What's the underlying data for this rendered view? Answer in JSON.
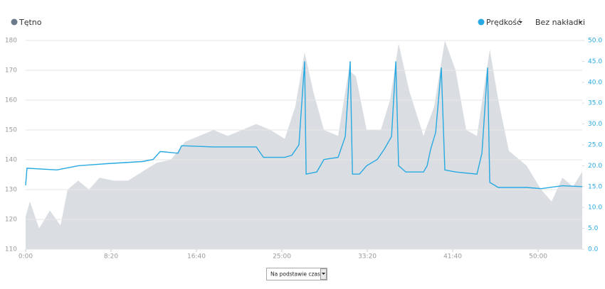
{
  "chart_data": {
    "type": "line",
    "xlim": [
      0,
      3258
    ],
    "xticks": [
      {
        "value": 0,
        "label": "0:00"
      },
      {
        "value": 500,
        "label": "8:20"
      },
      {
        "value": 1000,
        "label": "16:40"
      },
      {
        "value": 1500,
        "label": "25:00"
      },
      {
        "value": 2000,
        "label": "33:20"
      },
      {
        "value": 2500,
        "label": "41:40"
      },
      {
        "value": 3000,
        "label": "50:00"
      }
    ],
    "ylim": [
      110,
      180
    ],
    "yticks": [
      110,
      120,
      130,
      140,
      150,
      160,
      170,
      180
    ],
    "y2lim": [
      0,
      50
    ],
    "y2ticks": [
      {
        "value": 0,
        "label": "0.0"
      },
      {
        "value": 5,
        "label": "5.0"
      },
      {
        "value": 10,
        "label": "10.0"
      },
      {
        "value": 15,
        "label": "15.0"
      },
      {
        "value": 20,
        "label": "20.0"
      },
      {
        "value": 25,
        "label": "25.0"
      },
      {
        "value": 30,
        "label": "30.0"
      },
      {
        "value": 35,
        "label": "35.0"
      },
      {
        "value": 40,
        "label": "40.0"
      },
      {
        "value": 45,
        "label": "45.0"
      },
      {
        "value": 50,
        "label": "50.0"
      }
    ],
    "grid": true,
    "series": [
      {
        "name": "Tętno",
        "color": "#dadee2",
        "legend_color": "#6a7a8a",
        "fill": true,
        "x": [
          0,
          25,
          79,
          142,
          204,
          246,
          308,
          371,
          433,
          517,
          600,
          683,
          767,
          850,
          933,
          1017,
          1100,
          1183,
          1267,
          1350,
          1433,
          1517,
          1579,
          1633,
          1683,
          1746,
          1829,
          1892,
          1933,
          1996,
          2079,
          2133,
          2183,
          2246,
          2329,
          2392,
          2454,
          2517,
          2579,
          2642,
          2717,
          2767,
          2829,
          2933,
          3017,
          3079,
          3142,
          3204,
          3258
        ],
        "values": [
          121,
          126,
          117,
          123,
          118,
          130,
          133,
          130,
          134,
          133,
          133,
          136,
          139,
          140,
          146,
          148,
          150,
          148,
          150,
          152,
          150,
          147,
          158,
          176,
          163,
          150,
          148,
          170,
          168,
          150,
          150,
          160,
          179,
          163,
          148,
          158,
          180,
          170,
          150,
          148,
          177,
          160,
          143,
          138,
          130,
          126,
          134,
          131,
          136
        ]
      },
      {
        "name": "Prędkość",
        "color": "#27a9e1",
        "axis": "y2",
        "x": [
          0,
          8,
          183,
          308,
          475,
          683,
          746,
          788,
          892,
          913,
          1100,
          1350,
          1392,
          1517,
          1558,
          1600,
          1633,
          1642,
          1704,
          1746,
          1829,
          1871,
          1900,
          1913,
          1954,
          1996,
          2058,
          2100,
          2142,
          2167,
          2183,
          2225,
          2329,
          2350,
          2371,
          2400,
          2433,
          2454,
          2517,
          2642,
          2671,
          2704,
          2717,
          2767,
          2933,
          3017,
          3142,
          3258
        ],
        "values": [
          15.3,
          19.4,
          19,
          20,
          20.5,
          21,
          21.5,
          23.4,
          23,
          24.8,
          24.5,
          24.5,
          22,
          22,
          22.5,
          25,
          45,
          18,
          18.5,
          21.5,
          22,
          27,
          45,
          18,
          18,
          20,
          21.5,
          24,
          27,
          45,
          20,
          18.5,
          18.5,
          20,
          24,
          28,
          43.5,
          19,
          18.5,
          18,
          23,
          43.5,
          16,
          14.8,
          14.8,
          14.5,
          15.2,
          15
        ]
      }
    ]
  },
  "controls": {
    "overlay": "Bez nakładki",
    "basis": "Na podstawie czasu"
  }
}
